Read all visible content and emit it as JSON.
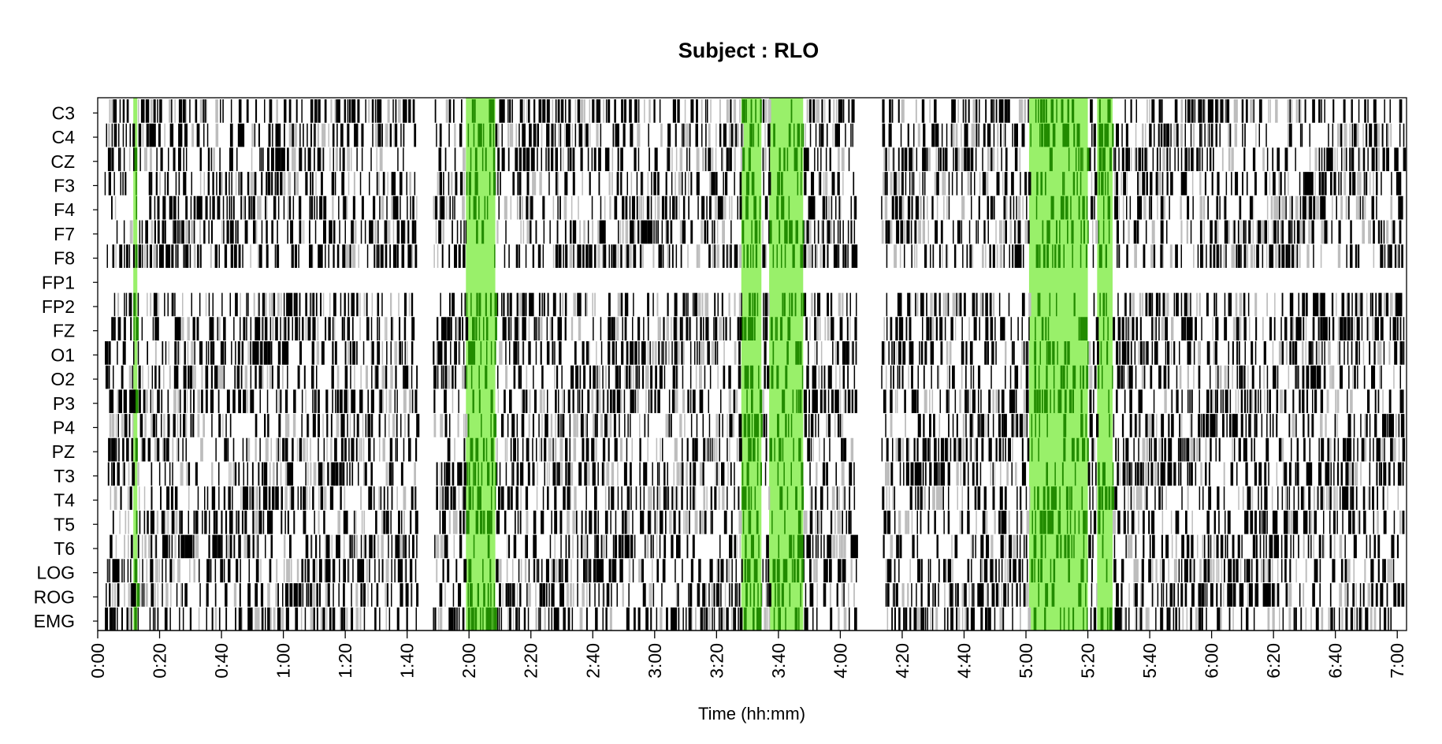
{
  "chart_data": {
    "type": "heatmap",
    "title": "Subject : RLO",
    "xlabel": "Time (hh:mm)",
    "ylabel": "",
    "xlim_minutes": [
      0,
      423
    ],
    "channels": [
      "C3",
      "C4",
      "CZ",
      "F3",
      "F4",
      "F7",
      "F8",
      "FP1",
      "FP2",
      "FZ",
      "O1",
      "O2",
      "P3",
      "P4",
      "PZ",
      "T3",
      "T4",
      "T5",
      "T6",
      "LOG",
      "ROG",
      "EMG"
    ],
    "x_ticks": [
      "0:00",
      "0:20",
      "0:40",
      "1:00",
      "1:20",
      "1:40",
      "2:00",
      "2:20",
      "2:40",
      "3:00",
      "3:20",
      "3:40",
      "4:00",
      "4:20",
      "4:40",
      "5:00",
      "5:20",
      "5:40",
      "6:00",
      "6:20",
      "6:40",
      "7:00"
    ],
    "x_tick_minutes": [
      0,
      20,
      40,
      60,
      80,
      100,
      120,
      140,
      160,
      180,
      200,
      220,
      240,
      260,
      280,
      300,
      320,
      340,
      360,
      380,
      400,
      420
    ],
    "highlight_intervals_minutes": [
      [
        11.5,
        12.8
      ],
      [
        119,
        128.5
      ],
      [
        208,
        214.5
      ],
      [
        217,
        228
      ],
      [
        301,
        320
      ],
      [
        323,
        328
      ]
    ],
    "highlight_color": "#99f06a",
    "event_colors": [
      "#000000",
      "#bdbdbd",
      "#228b00"
    ],
    "active_segments_minutes": [
      [
        2,
        103
      ],
      [
        108,
        245
      ],
      [
        253,
        422
      ]
    ],
    "empty_channels": [
      "FP1"
    ],
    "grid": false,
    "legend": "none"
  }
}
